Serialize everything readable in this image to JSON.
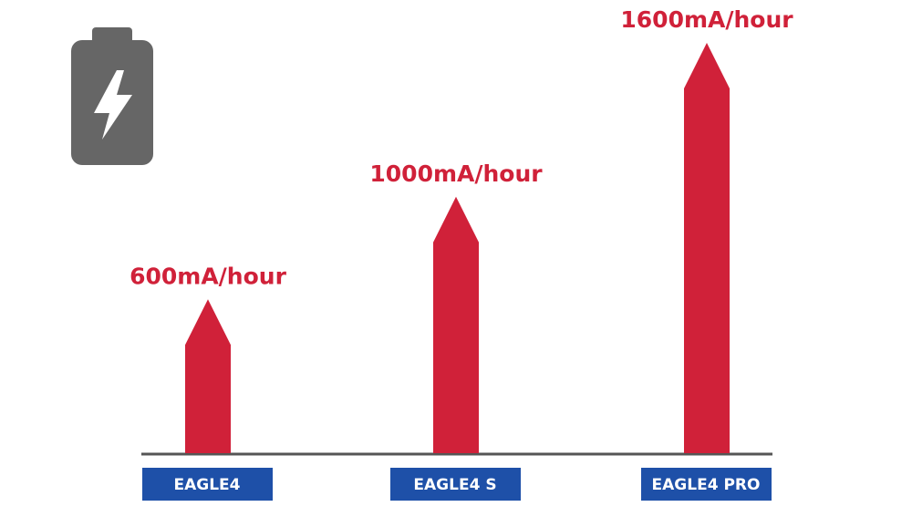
{
  "chart_data": {
    "type": "arrow-bar",
    "categories": [
      "EAGLE4",
      "EAGLE4 S",
      "EAGLE4 PRO"
    ],
    "values": [
      600,
      1000,
      1600
    ],
    "value_labels": [
      "600mA/hour",
      "1000mA/hour",
      "1600mA/hour"
    ],
    "color": "#d02139",
    "label_color": "#1e50a8"
  }
}
